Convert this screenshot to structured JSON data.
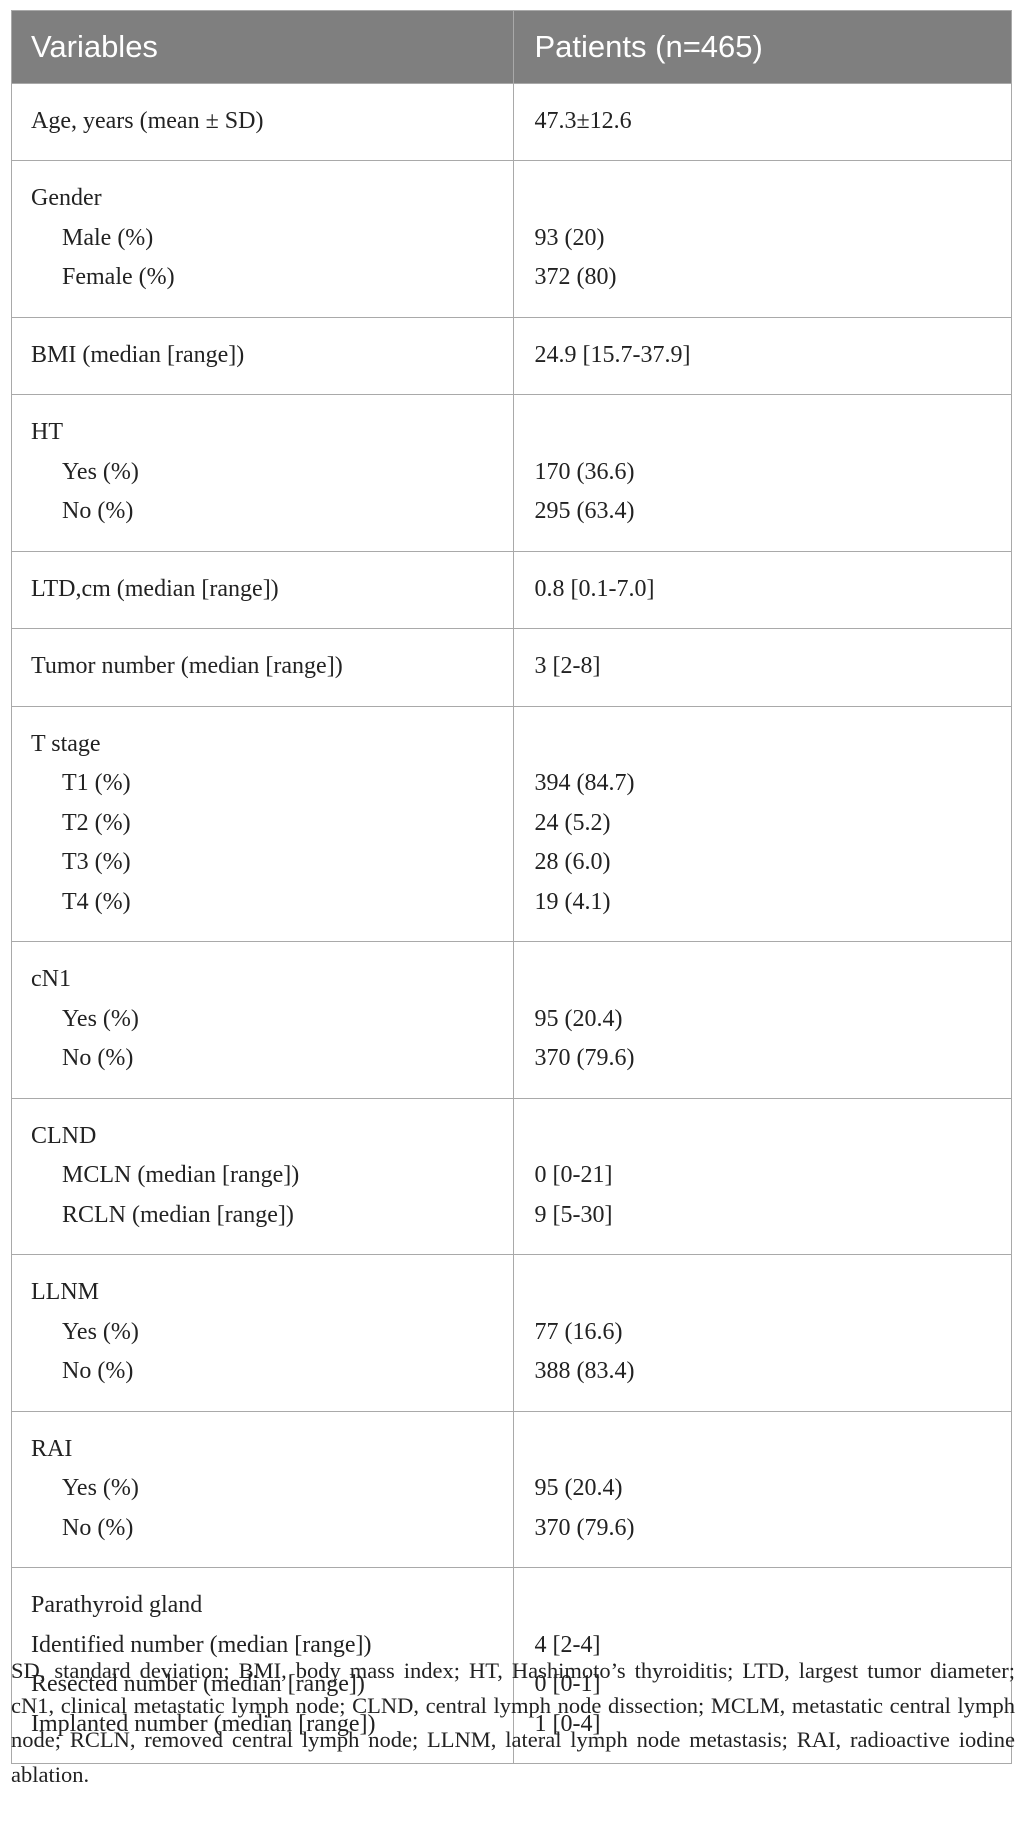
{
  "table": {
    "headers": [
      "Variables",
      "Patients (n=465)"
    ],
    "rows": [
      {
        "label": "Age, years (mean ± SD)",
        "value": "47.3±12.6"
      },
      {
        "label": "Gender",
        "subs": [
          {
            "label": "Male (%)",
            "value": "93 (20)"
          },
          {
            "label": "Female (%)",
            "value": "372 (80)"
          }
        ]
      },
      {
        "label": "BMI (median [range])",
        "value": "24.9 [15.7-37.9]"
      },
      {
        "label": "HT",
        "subs": [
          {
            "label": "Yes (%)",
            "value": "170 (36.6)"
          },
          {
            "label": "No (%)",
            "value": "295 (63.4)"
          }
        ]
      },
      {
        "label": "LTD,cm (median [range])",
        "value": "0.8 [0.1-7.0]"
      },
      {
        "label": "Tumor number (median [range])",
        "value": "3 [2-8]"
      },
      {
        "label": "T stage",
        "subs": [
          {
            "label": "T1 (%)",
            "value": "394 (84.7)"
          },
          {
            "label": "T2 (%)",
            "value": "24 (5.2)"
          },
          {
            "label": "T3 (%)",
            "value": "28 (6.0)"
          },
          {
            "label": "T4 (%)",
            "value": "19 (4.1)"
          }
        ]
      },
      {
        "label": "cN1",
        "subs": [
          {
            "label": "Yes (%)",
            "value": "95 (20.4)"
          },
          {
            "label": "No (%)",
            "value": "370 (79.6)"
          }
        ]
      },
      {
        "label": "CLND",
        "subs": [
          {
            "label": "MCLN (median [range])",
            "value": "0 [0-21]"
          },
          {
            "label": "RCLN (median [range])",
            "value": "9 [5-30]"
          }
        ]
      },
      {
        "label": "LLNM",
        "subs": [
          {
            "label": "Yes (%)",
            "value": "77 (16.6)"
          },
          {
            "label": "No (%)",
            "value": "388 (83.4)"
          }
        ]
      },
      {
        "label": "RAI",
        "subs": [
          {
            "label": "Yes (%)",
            "value": "95 (20.4)"
          },
          {
            "label": "No (%)",
            "value": "370 (79.6)"
          }
        ]
      },
      {
        "label": "Parathyroid gland",
        "flat": true,
        "subs": [
          {
            "label": "Identified number (median [range])",
            "value": "4 [2-4]"
          },
          {
            "label": "Resected number (median [range])",
            "value": "0 [0-1]"
          },
          {
            "label": "Implanted number (median [range])",
            "value": "1 [0-4]"
          }
        ]
      }
    ]
  },
  "footnote": "SD, standard deviation; BMI, body mass index; HT, Hashimoto’s thyroiditis; LTD, largest tumor diameter; cN1, clinical metastatic lymph node; CLND, central lymph node dissection; MCLM, metastatic central lymph node; RCLN, removed central lymph node; LLNM, lateral lymph node metastasis; RAI, radioactive iodine ablation."
}
